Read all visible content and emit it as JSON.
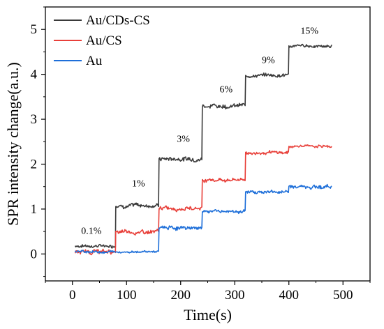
{
  "chart_data": {
    "type": "line",
    "title": "",
    "xlabel": "Time(s)",
    "ylabel": "SPR intensity change(a.u.)",
    "xlim": [
      -50,
      550
    ],
    "ylim": [
      -0.6,
      5.5
    ],
    "x_ticks": [
      0,
      100,
      200,
      300,
      400,
      500
    ],
    "y_ticks": [
      0,
      1,
      2,
      3,
      4,
      5
    ],
    "grid": false,
    "legend_position": "top-left",
    "series": [
      {
        "name": "Au/CDs-CS",
        "color": "#3a3a3a",
        "steps": [
          {
            "x0": 5,
            "x1": 80,
            "y": 0.18,
            "noise": 0.05
          },
          {
            "x0": 80,
            "x1": 160,
            "y": 1.08,
            "noise": 0.07
          },
          {
            "x0": 160,
            "x1": 240,
            "y": 2.12,
            "noise": 0.07
          },
          {
            "x0": 240,
            "x1": 320,
            "y": 3.3,
            "noise": 0.07
          },
          {
            "x0": 320,
            "x1": 400,
            "y": 3.98,
            "noise": 0.06
          },
          {
            "x0": 400,
            "x1": 480,
            "y": 4.63,
            "noise": 0.05
          }
        ]
      },
      {
        "name": "Au/CS",
        "color": "#e8403a",
        "steps": [
          {
            "x0": 5,
            "x1": 80,
            "y": 0.05,
            "noise": 0.07
          },
          {
            "x0": 80,
            "x1": 160,
            "y": 0.48,
            "noise": 0.07
          },
          {
            "x0": 160,
            "x1": 240,
            "y": 1.02,
            "noise": 0.06
          },
          {
            "x0": 240,
            "x1": 320,
            "y": 1.65,
            "noise": 0.06
          },
          {
            "x0": 320,
            "x1": 400,
            "y": 2.25,
            "noise": 0.05
          },
          {
            "x0": 400,
            "x1": 480,
            "y": 2.4,
            "noise": 0.04
          }
        ]
      },
      {
        "name": "Au",
        "color": "#1e6fd9",
        "steps": [
          {
            "x0": 5,
            "x1": 80,
            "y": 0.05,
            "noise": 0.04
          },
          {
            "x0": 80,
            "x1": 160,
            "y": 0.05,
            "noise": 0.03
          },
          {
            "x0": 160,
            "x1": 240,
            "y": 0.58,
            "noise": 0.06
          },
          {
            "x0": 240,
            "x1": 320,
            "y": 0.95,
            "noise": 0.05
          },
          {
            "x0": 320,
            "x1": 400,
            "y": 1.38,
            "noise": 0.05
          },
          {
            "x0": 400,
            "x1": 480,
            "y": 1.5,
            "noise": 0.06
          }
        ]
      }
    ],
    "annotations": [
      {
        "text": "0.1%",
        "x": 35,
        "y": 0.45
      },
      {
        "text": "1%",
        "x": 122,
        "y": 1.5
      },
      {
        "text": "3%",
        "x": 205,
        "y": 2.5
      },
      {
        "text": "6%",
        "x": 284,
        "y": 3.6
      },
      {
        "text": "9%",
        "x": 362,
        "y": 4.25
      },
      {
        "text": "15%",
        "x": 438,
        "y": 4.9
      }
    ]
  }
}
